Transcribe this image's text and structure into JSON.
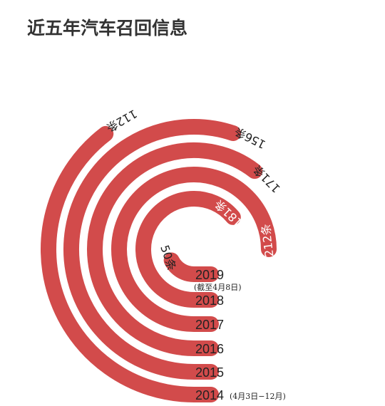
{
  "title": "近五年汽车召回信息",
  "chart_data": {
    "type": "radial-bar",
    "categories": [
      "2019",
      "2018",
      "2017",
      "2016",
      "2015",
      "2014"
    ],
    "category_notes": [
      "(截至4月8日)",
      "",
      "",
      "",
      "",
      "(4月3日−12月)"
    ],
    "values": [
      50,
      181,
      212,
      171,
      156,
      112
    ],
    "value_labels": [
      "50条",
      "181条",
      "212条",
      "171条",
      "156条",
      "112条"
    ],
    "unit": "条",
    "colors": {
      "bar": "#d24b4b",
      "label_on_bar": "#ffffff",
      "label": "#222222"
    }
  }
}
